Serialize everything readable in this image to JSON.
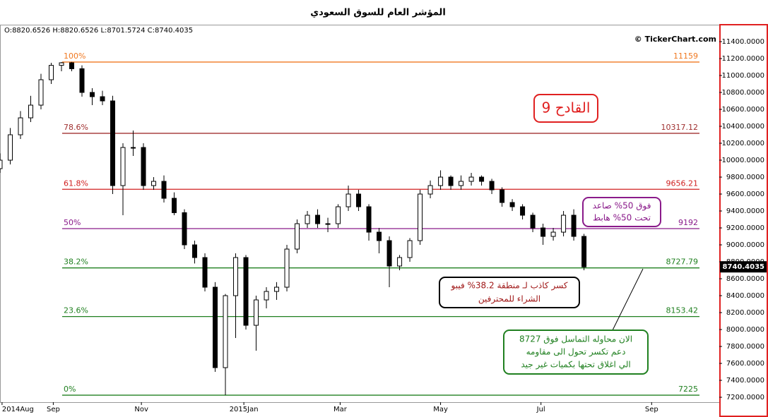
{
  "chart_data": {
    "type": "candlestick",
    "title": "المؤشر العام للسوق السعودي",
    "ohlc_header": "O:8820.6526 H:8820.6526 L:8701.5724 C:8740.4035",
    "watermark": "© TickerChart.com",
    "x": [
      0,
      5,
      10,
      15,
      20,
      25,
      30,
      35,
      40,
      45,
      50,
      55,
      60,
      65,
      70,
      75,
      80,
      85,
      90,
      95,
      100,
      105,
      110,
      115,
      120,
      125,
      130,
      135,
      140,
      145,
      150,
      155,
      160,
      165,
      170,
      175,
      180,
      185,
      190,
      195,
      200,
      205,
      210,
      215,
      220,
      225,
      230,
      235,
      240,
      245,
      250,
      255,
      260,
      265,
      270,
      275,
      280,
      285
    ],
    "open": [
      9900,
      10000,
      10300,
      10500,
      10650,
      10950,
      11120,
      11150,
      11080,
      10800,
      10750,
      10700,
      9700,
      10150,
      10150,
      9700,
      9750,
      9550,
      9380,
      9000,
      8850,
      8500,
      7550,
      8400,
      8850,
      8050,
      8350,
      8450,
      8500,
      8950,
      9250,
      9350,
      9250,
      9250,
      9450,
      9600,
      9450,
      9150,
      9050,
      8750,
      8850,
      9050,
      9600,
      9700,
      9800,
      9700,
      9750,
      9800,
      9750,
      9650,
      9500,
      9450,
      9350,
      9200,
      9100,
      9150,
      9350,
      9100
    ],
    "high": [
      10080,
      10380,
      10580,
      10760,
      11020,
      11150,
      11159,
      11160,
      11120,
      10850,
      10820,
      10760,
      10200,
      10350,
      10200,
      9800,
      9820,
      9620,
      9420,
      9050,
      8900,
      8560,
      8420,
      8900,
      8880,
      8400,
      8500,
      8560,
      9000,
      9300,
      9400,
      9420,
      9320,
      9480,
      9700,
      9650,
      9480,
      9200,
      9100,
      8880,
      9080,
      9650,
      9760,
      9880,
      9820,
      9820,
      9850,
      9820,
      9780,
      9680,
      9540,
      9480,
      9380,
      9250,
      9200,
      9400,
      9420,
      9130
    ],
    "low": [
      9850,
      9950,
      10250,
      10450,
      10600,
      10900,
      11050,
      11050,
      10750,
      10650,
      10650,
      9600,
      9350,
      10050,
      9650,
      9650,
      9500,
      9350,
      8950,
      8780,
      8450,
      7500,
      7225,
      7900,
      8000,
      7750,
      8250,
      8350,
      8450,
      8900,
      9200,
      9200,
      9150,
      9200,
      9400,
      9400,
      9050,
      8900,
      8500,
      8700,
      8800,
      9000,
      9550,
      9650,
      9650,
      9650,
      9700,
      9700,
      9600,
      9450,
      9400,
      9300,
      9150,
      9000,
      9050,
      9100,
      9050,
      8700
    ],
    "close": [
      10000,
      10300,
      10500,
      10650,
      10950,
      11120,
      11150,
      11080,
      10800,
      10750,
      10700,
      9700,
      10150,
      10150,
      9700,
      9750,
      9550,
      9380,
      9000,
      8850,
      8500,
      7550,
      8400,
      8850,
      8050,
      8350,
      8450,
      8500,
      8950,
      9250,
      9350,
      9250,
      9250,
      9450,
      9600,
      9450,
      9150,
      9050,
      8750,
      8850,
      9050,
      9600,
      9700,
      9800,
      9700,
      9750,
      9800,
      9750,
      9650,
      9500,
      9450,
      9350,
      9200,
      9100,
      9150,
      9350,
      9100,
      8740
    ],
    "last_price": 8740.4035,
    "xlim": [
      0,
      351
    ],
    "xticks": [
      {
        "value": 1,
        "label": "2014Aug"
      },
      {
        "value": 26,
        "label": "Sep"
      },
      {
        "value": 69,
        "label": "Nov"
      },
      {
        "value": 119,
        "label": "2015Jan"
      },
      {
        "value": 166,
        "label": "Mar"
      },
      {
        "value": 215,
        "label": "May"
      },
      {
        "value": 264,
        "label": "Jul"
      },
      {
        "value": 318,
        "label": "Sep"
      }
    ],
    "ylim": [
      7142,
      11600
    ],
    "yticks": [
      {
        "value": 7200,
        "label": "7200.0000"
      },
      {
        "value": 7400,
        "label": "7400.0000"
      },
      {
        "value": 7600,
        "label": "7600.0000"
      },
      {
        "value": 7800,
        "label": "7800.0000"
      },
      {
        "value": 8000,
        "label": "8000.0000"
      },
      {
        "value": 8200,
        "label": "8200.0000"
      },
      {
        "value": 8400,
        "label": "8400.0000"
      },
      {
        "value": 8600,
        "label": "8600.0000"
      },
      {
        "value": 8800,
        "label": "8800.0000"
      },
      {
        "value": 9000,
        "label": "9000.0000"
      },
      {
        "value": 9200,
        "label": "9200.0000"
      },
      {
        "value": 9400,
        "label": "9400.0000"
      },
      {
        "value": 9600,
        "label": "9600.0000"
      },
      {
        "value": 9800,
        "label": "9800.0000"
      },
      {
        "value": 10000,
        "label": "10000.0000"
      },
      {
        "value": 10200,
        "label": "10200.0000"
      },
      {
        "value": 10400,
        "label": "10400.0000"
      },
      {
        "value": 10600,
        "label": "10600.0000"
      },
      {
        "value": 10800,
        "label": "10800.0000"
      },
      {
        "value": 11000,
        "label": "11000.0000"
      },
      {
        "value": 11200,
        "label": "11200.0000"
      },
      {
        "value": 11400,
        "label": "11400.0000"
      }
    ],
    "fib_levels": [
      {
        "name": "100%",
        "value": 11159,
        "color": "#f07820"
      },
      {
        "name": "78.6%",
        "value": 10317.12,
        "color": "#a03030"
      },
      {
        "name": "61.8%",
        "value": 9656.21,
        "color": "#d02020"
      },
      {
        "name": "50%",
        "value": 9192,
        "color": "#8a1a8a"
      },
      {
        "name": "38.2%",
        "value": 8727.79,
        "color": "#208020"
      },
      {
        "name": "23.6%",
        "value": 8153.42,
        "color": "#208020"
      },
      {
        "name": "0%",
        "value": 7225,
        "color": "#208020"
      }
    ],
    "annotations": [
      {
        "lines": [
          "القادح 9"
        ]
      },
      {
        "lines": [
          "فوق 50% صاعد",
          "تحت 50% هابط"
        ]
      },
      {
        "lines": [
          "كسر كاذب لـ منطقة 38.2% فيبو",
          "الشراء للمحترفين"
        ]
      },
      {
        "lines": [
          "الان محاوله التماسل فوق 8727",
          "دعم تكسر تحول الى مقاومه",
          "الي اغلاق تحتها بكميات غير جيد"
        ]
      }
    ]
  }
}
